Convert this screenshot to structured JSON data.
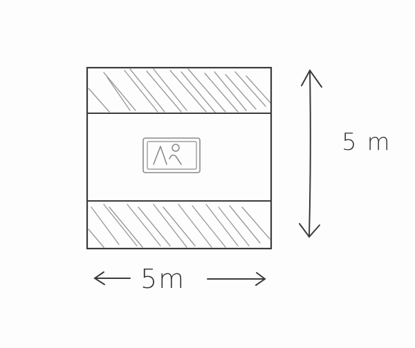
{
  "labels": {
    "height": "5 m",
    "width": "5m"
  },
  "colors": {
    "ink": "#3a3a3a",
    "hatch": "#9a9a9a",
    "photo": "#8a8a8a",
    "background": "#fdfdfd"
  },
  "icons": {
    "placeholder": "image-placeholder-icon"
  }
}
